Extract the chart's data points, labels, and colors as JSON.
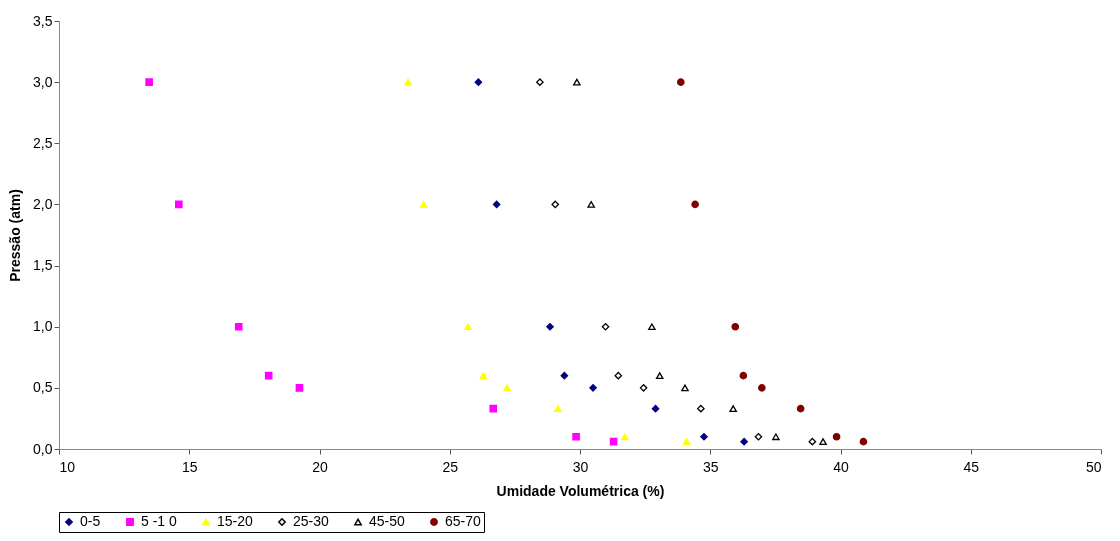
{
  "chart_data": {
    "type": "scatter",
    "xlabel": "Umidade Volumétrica (%)",
    "ylabel": "Pressão (atm)",
    "xlim": [
      10,
      50
    ],
    "xticks": [
      10,
      15,
      20,
      25,
      30,
      35,
      40,
      45,
      50
    ],
    "ylim": [
      0,
      3.5
    ],
    "yticks": [
      {
        "value": 0,
        "label": "0,0"
      },
      {
        "value": 0.5,
        "label": "0,5"
      },
      {
        "value": 1,
        "label": "1,0"
      },
      {
        "value": 1.5,
        "label": "1,5"
      },
      {
        "value": 2,
        "label": "2,0"
      },
      {
        "value": 2.5,
        "label": "2,5"
      },
      {
        "value": 3,
        "label": "3,0"
      },
      {
        "value": 3.5,
        "label": "3,5"
      }
    ],
    "grid": false,
    "legend": "bottom",
    "series": [
      {
        "name": "0-5",
        "color": "#000080",
        "marker": "diamond",
        "x": [
          26.1,
          26.8,
          28.85,
          29.4,
          30.5,
          32.9,
          34.76,
          36.3
        ],
        "values": [
          3,
          2,
          1,
          0.6,
          0.5,
          0.33,
          0.1,
          0.06
        ]
      },
      {
        "name": "5 -1 0",
        "color": "#ff00ff",
        "marker": "square",
        "x": [
          13.46,
          14.6,
          16.9,
          18.05,
          19.23,
          26.67,
          29.85,
          31.29
        ],
        "values": [
          3,
          2,
          1,
          0.6,
          0.5,
          0.33,
          0.1,
          0.06
        ]
      },
      {
        "name": "15-20",
        "color": "#ffff00",
        "marker": "triangle",
        "x": [
          23.4,
          24.0,
          25.7,
          26.29,
          27.2,
          29.15,
          31.72,
          34.09
        ],
        "values": [
          3,
          2,
          1,
          0.6,
          0.5,
          0.33,
          0.1,
          0.06
        ]
      },
      {
        "name": "25-30",
        "color": "#ffffff",
        "marker": "diamond",
        "x": [
          28.46,
          29.05,
          30.98,
          31.47,
          32.44,
          34.64,
          36.85,
          38.92
        ],
        "values": [
          3,
          2,
          1,
          0.6,
          0.5,
          0.33,
          0.1,
          0.06
        ]
      },
      {
        "name": "45-50",
        "color": "#ffffff",
        "marker": "triangle",
        "x": [
          29.88,
          30.43,
          32.76,
          33.06,
          34.03,
          35.88,
          37.52,
          39.33
        ],
        "values": [
          3,
          2,
          1,
          0.6,
          0.5,
          0.33,
          0.1,
          0.06
        ]
      },
      {
        "name": "65-70",
        "color": "#800000",
        "marker": "circle",
        "x": [
          33.87,
          34.42,
          35.96,
          36.27,
          36.98,
          38.47,
          39.85,
          40.88
        ],
        "values": [
          3,
          2,
          1,
          0.6,
          0.5,
          0.33,
          0.1,
          0.06
        ]
      }
    ]
  }
}
